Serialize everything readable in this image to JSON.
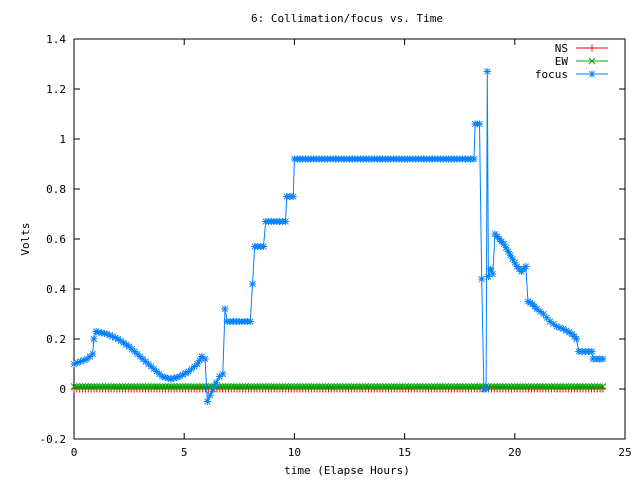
{
  "chart_data": {
    "type": "line",
    "title": "6: Collimation/focus vs. Time",
    "xlabel": "time (Elapse Hours)",
    "ylabel": "Volts",
    "xlim": [
      0,
      25
    ],
    "ylim": [
      -0.2,
      1.4
    ],
    "x_ticks": [
      0,
      5,
      10,
      15,
      20,
      25
    ],
    "x_tick_labels": [
      "0",
      "5",
      "10",
      "15",
      "20",
      "25"
    ],
    "y_ticks": [
      -0.2,
      0,
      0.2,
      0.4,
      0.6,
      0.8,
      1,
      1.2,
      1.4
    ],
    "y_tick_labels": [
      "-0.2",
      "0",
      "0.2",
      "0.4",
      "0.6",
      "0.8",
      "1",
      "1.2",
      "1.4"
    ],
    "grid": false,
    "legend_position": "top-right",
    "series": [
      {
        "name": "NS",
        "color": "#ff0000",
        "marker": "plus",
        "x_range": [
          0,
          24
        ],
        "constant_value": 0.0
      },
      {
        "name": "EW",
        "color": "#00a000",
        "marker": "cross",
        "x_range": [
          0,
          24
        ],
        "constant_value": 0.01
      },
      {
        "name": "focus",
        "color": "#0080ff",
        "marker": "star",
        "points": [
          [
            0.0,
            0.1
          ],
          [
            0.3,
            0.11
          ],
          [
            0.6,
            0.12
          ],
          [
            0.85,
            0.14
          ],
          [
            0.9,
            0.2
          ],
          [
            1.0,
            0.23
          ],
          [
            1.5,
            0.22
          ],
          [
            2.0,
            0.2
          ],
          [
            2.5,
            0.17
          ],
          [
            3.0,
            0.13
          ],
          [
            3.5,
            0.09
          ],
          [
            4.0,
            0.05
          ],
          [
            4.4,
            0.04
          ],
          [
            4.8,
            0.05
          ],
          [
            5.2,
            0.07
          ],
          [
            5.6,
            0.1
          ],
          [
            5.8,
            0.13
          ],
          [
            5.95,
            0.12
          ],
          [
            6.05,
            -0.05
          ],
          [
            6.3,
            0.0
          ],
          [
            6.6,
            0.05
          ],
          [
            6.75,
            0.06
          ],
          [
            6.85,
            0.32
          ],
          [
            6.95,
            0.27
          ],
          [
            7.5,
            0.27
          ],
          [
            8.0,
            0.27
          ],
          [
            8.2,
            0.57
          ],
          [
            8.6,
            0.57
          ],
          [
            8.7,
            0.67
          ],
          [
            9.2,
            0.67
          ],
          [
            9.6,
            0.67
          ],
          [
            9.65,
            0.77
          ],
          [
            9.95,
            0.77
          ],
          [
            10.0,
            0.92
          ],
          [
            11.0,
            0.92
          ],
          [
            12.0,
            0.92
          ],
          [
            13.0,
            0.92
          ],
          [
            14.0,
            0.92
          ],
          [
            15.0,
            0.92
          ],
          [
            16.0,
            0.92
          ],
          [
            17.0,
            0.92
          ],
          [
            18.0,
            0.92
          ],
          [
            18.15,
            0.92
          ],
          [
            18.2,
            1.06
          ],
          [
            18.4,
            1.06
          ],
          [
            18.5,
            0.44
          ],
          [
            18.6,
            0.0
          ],
          [
            18.7,
            0.0
          ],
          [
            18.75,
            1.27
          ],
          [
            18.8,
            0.45
          ],
          [
            18.9,
            0.48
          ],
          [
            19.0,
            0.46
          ],
          [
            19.1,
            0.62
          ],
          [
            19.3,
            0.6
          ],
          [
            19.5,
            0.58
          ],
          [
            19.7,
            0.55
          ],
          [
            19.9,
            0.52
          ],
          [
            20.1,
            0.49
          ],
          [
            20.3,
            0.47
          ],
          [
            20.5,
            0.49
          ],
          [
            20.6,
            0.35
          ],
          [
            20.8,
            0.34
          ],
          [
            21.0,
            0.32
          ],
          [
            21.3,
            0.3
          ],
          [
            21.6,
            0.27
          ],
          [
            21.9,
            0.25
          ],
          [
            22.2,
            0.24
          ],
          [
            22.6,
            0.22
          ],
          [
            22.8,
            0.2
          ],
          [
            22.9,
            0.15
          ],
          [
            23.2,
            0.15
          ],
          [
            23.5,
            0.15
          ],
          [
            23.55,
            0.12
          ],
          [
            23.7,
            0.12
          ],
          [
            24.0,
            0.12
          ]
        ]
      }
    ]
  }
}
